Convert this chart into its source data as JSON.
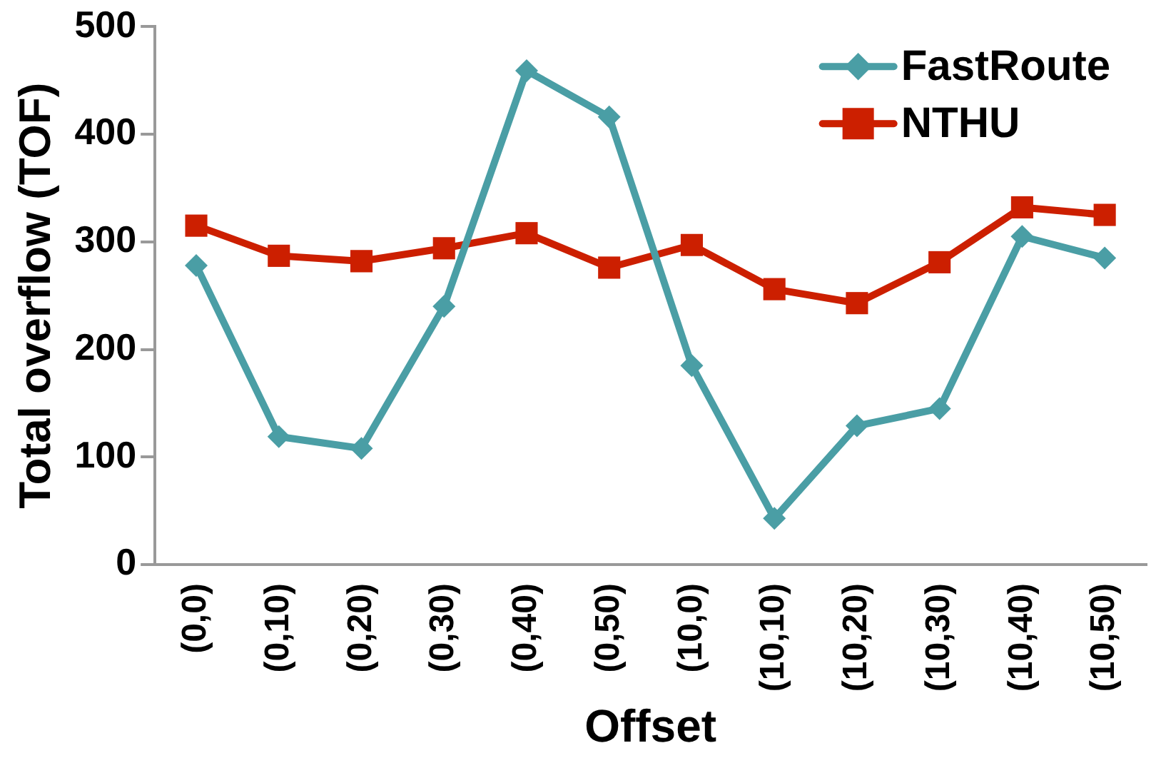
{
  "chart_data": {
    "type": "line",
    "xlabel": "Offset",
    "ylabel": "Total overflow (TOF)",
    "categories": [
      "(0,0)",
      "(0,10)",
      "(0,20)",
      "(0,30)",
      "(0,40)",
      "(0,50)",
      "(10,0)",
      "(10,10)",
      "(10,20)",
      "(10,30)",
      "(10,40)",
      "(10,50)"
    ],
    "series": [
      {
        "name": "FastRoute",
        "color": "#4a9ea5",
        "marker": "diamond",
        "values": [
          278,
          119,
          108,
          240,
          459,
          416,
          185,
          43,
          129,
          145,
          305,
          285
        ]
      },
      {
        "name": "NTHU",
        "color": "#cc1f00",
        "marker": "square",
        "values": [
          315,
          287,
          282,
          294,
          308,
          276,
          297,
          256,
          243,
          281,
          332,
          325
        ]
      }
    ],
    "ylim": [
      0,
      500
    ],
    "yticks": [
      0,
      100,
      200,
      300,
      400,
      500
    ],
    "grid": false,
    "legend": "top right"
  }
}
